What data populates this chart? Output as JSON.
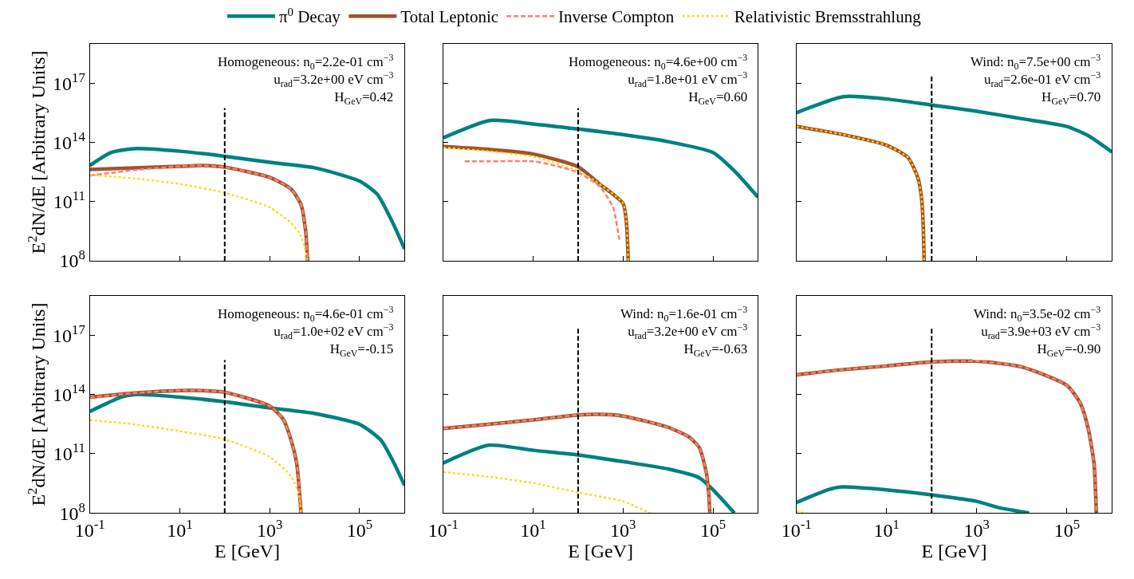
{
  "chart_data": [
    {
      "type": "line",
      "legend": "top",
      "tick_labels": "y",
      "log": "xy",
      "ylabel": "E$^{2}$dN/dE [Arbitrary Units]",
      "xlim": [
        0.1,
        1000000.0
      ],
      "ylim": [
        100000000.0,
        1e+19
      ],
      "xticks": [
        {
          "value": 0.1,
          "label": "10$^{-1}$"
        },
        {
          "value": 10,
          "label": "10$^{1}$"
        },
        {
          "value": 1000,
          "label": "10$^{3}$"
        },
        {
          "value": 100000,
          "label": "10$^{5}$"
        }
      ],
      "yticks": [
        {
          "value": 100000000.0,
          "label": "10$^{8}$"
        },
        {
          "value": 100000000000.0,
          "label": "10$^{11}$"
        },
        {
          "value": 100000000000000.0,
          "label": "10$^{14}$"
        },
        {
          "value": 1e+17,
          "label": "10$^{17}$"
        }
      ],
      "annotations": [
        "Homogeneous: n$_{0}$=2.2e-01 cm$^{−3}$\nu$_{rad}$=3.2e+00 eV cm$^{−3}$\nH$_{GeV}$=0.42"
      ],
      "ref_lines": [
        {
          "axis": "x",
          "value": 100,
          "color": "#000000",
          "line_style": "dashed"
        }
      ],
      "series": [
        {
          "name": "π$^{0}$ Decay",
          "color": "#008080",
          "line_style": "solid",
          "x": [
            0.1,
            0.3,
            1.1,
            10,
            100,
            1000,
            10000,
            100000,
            250000,
            550000,
            1000000
          ],
          "values": [
            6800000000000.0,
            31000000000000.0,
            49000000000000.0,
            36000000000000.0,
            20000000000000.0,
            9800000000000.0,
            5200000000000.0,
            1100000000000.0,
            230000000000.0,
            8300000000.0,
            400000000.0
          ]
        },
        {
          "name": "Total Leptonic",
          "color": "#a0522d",
          "line_style": "solid",
          "x": [
            0.1,
            1,
            10,
            30,
            100,
            1000,
            3000,
            5000,
            6300,
            7000
          ],
          "values": [
            4300000000000.0,
            5200000000000.0,
            6200000000000.0,
            6800000000000.0,
            5600000000000.0,
            1700000000000.0,
            430000000000.0,
            69000000000.0,
            3300000000.0,
            100000000.0
          ]
        },
        {
          "name": "Inverse Compton",
          "color": "#fa8072",
          "line_style": "dashed",
          "x": [
            0.1,
            0.3,
            1,
            10,
            30,
            100,
            1000,
            3000,
            5000,
            6300,
            7000
          ],
          "values": [
            2100000000000.0,
            2900000000000.0,
            4000000000000.0,
            6200000000000.0,
            6800000000000.0,
            5600000000000.0,
            1700000000000.0,
            430000000000.0,
            69000000000.0,
            3300000000.0,
            100000000.0
          ]
        },
        {
          "name": "Relativistic Bremsstrahlung",
          "color": "#ffd700",
          "line_style": "dotted",
          "x": [
            0.1,
            1,
            10,
            100,
            1000,
            3000,
            5000,
            7000
          ],
          "values": [
            2300000000000.0,
            1500000000000.0,
            790000000000.0,
            280000000000.0,
            51000000000.0,
            8300000000.0,
            1800000000.0,
            100000000.0
          ]
        }
      ]
    },
    {
      "type": "line",
      "tick_labels": false,
      "log": "xy",
      "xlim": [
        0.1,
        1000000.0
      ],
      "ylim": [
        100000000.0,
        1e+19
      ],
      "xticks": [
        {
          "value": 0.1,
          "label": "10$^{-1}$"
        },
        {
          "value": 10,
          "label": "10$^{1}$"
        },
        {
          "value": 1000,
          "label": "10$^{3}$"
        },
        {
          "value": 100000,
          "label": "10$^{5}$"
        }
      ],
      "yticks": [
        {
          "value": 100000000.0,
          "label": "10$^{8}$"
        },
        {
          "value": 100000000000.0,
          "label": "10$^{11}$"
        },
        {
          "value": 100000000000000.0,
          "label": "10$^{14}$"
        },
        {
          "value": 1e+17,
          "label": "10$^{17}$"
        }
      ],
      "annotations": [
        "Homogeneous: n$_{0}$=4.6e+00 cm$^{−3}$\nu$_{rad}$=1.8e+01 eV cm$^{−3}$\nH$_{GeV}$=0.60"
      ],
      "ref_lines": [
        {
          "axis": "x",
          "value": 100,
          "color": "#000000",
          "line_style": "dashed"
        }
      ],
      "series": [
        {
          "color": "#008080",
          "line_style": "solid",
          "x": [
            0.1,
            1.1,
            10,
            100,
            1000,
            10000,
            100000,
            300000,
            1000000
          ],
          "values": [
            170000000000000.0,
            1300000000000000.0,
            870000000000000.0,
            480000000000000.0,
            250000000000000.0,
            110000000000000.0,
            31000000000000.0,
            3600000000000.0,
            170000000000.0
          ]
        },
        {
          "color": "#a0522d",
          "line_style": "solid",
          "x": [
            0.1,
            1,
            10,
            100,
            300,
            1000,
            1200,
            1300
          ],
          "values": [
            62000000000000.0,
            45000000000000.0,
            26000000000000.0,
            5800000000000.0,
            790000000000.0,
            81000000000.0,
            6200000000.0,
            100000000.0
          ]
        },
        {
          "color": "#fa8072",
          "line_style": "dashed",
          "x": [
            0.3,
            1,
            10,
            30,
            100,
            300,
            600,
            800,
            850
          ],
          "values": [
            11000000000000.0,
            11000000000000.0,
            11000000000000.0,
            6800000000000.0,
            3000000000000.0,
            590000000000.0,
            51000000000.0,
            1800000000.0,
            950000000.0
          ]
        },
        {
          "color": "#ffd700",
          "line_style": "dotted",
          "x": [
            0.1,
            1,
            10,
            100,
            300,
            1000,
            1200,
            1300
          ],
          "values": [
            56000000000000.0,
            36000000000000.0,
            19000000000000.0,
            3600000000000.0,
            790000000000.0,
            81000000000.0,
            6200000000.0,
            100000000.0
          ]
        }
      ]
    },
    {
      "type": "line",
      "tick_labels": false,
      "log": "xy",
      "xlim": [
        0.1,
        1000000.0
      ],
      "ylim": [
        100000000.0,
        1e+19
      ],
      "xticks": [
        {
          "value": 0.1,
          "label": "10$^{-1}$"
        },
        {
          "value": 10,
          "label": "10$^{1}$"
        },
        {
          "value": 1000,
          "label": "10$^{3}$"
        },
        {
          "value": 100000,
          "label": "10$^{5}$"
        }
      ],
      "yticks": [
        {
          "value": 100000000.0,
          "label": "10$^{8}$"
        },
        {
          "value": 100000000000.0,
          "label": "10$^{11}$"
        },
        {
          "value": 100000000000000.0,
          "label": "10$^{14}$"
        },
        {
          "value": 1e+17,
          "label": "10$^{17}$"
        }
      ],
      "annotations": [
        "Wind: n$_{0}$=7.5e+00 cm$^{−3}$\nu$_{rad}$=2.6e-01 eV cm$^{−3}$\nH$_{GeV}$=0.70"
      ],
      "ref_lines": [
        {
          "axis": "x",
          "value": 100,
          "color": "#000000",
          "line_style": "dashed"
        }
      ],
      "series": [
        {
          "color": "#008080",
          "line_style": "solid",
          "x": [
            0.1,
            1.1,
            10,
            100,
            1000,
            10000,
            100000,
            300000,
            1000000
          ],
          "values": [
            3200000000000000.0,
            2.1e+16,
            1.6e+16,
            7900000000000000.0,
            3800000000000000.0,
            1600000000000000.0,
            650000000000000.0,
            220000000000000.0,
            33000000000000.0
          ]
        },
        {
          "color": "#a0522d",
          "line_style": "solid",
          "x": [
            0.1,
            1,
            10,
            30,
            50,
            60,
            65,
            68
          ],
          "values": [
            650000000000000.0,
            260000000000000.0,
            72000000000000.0,
            17000000000000.0,
            1500000000000.0,
            130000000000.0,
            6200000000.0,
            100000000.0
          ]
        },
        {
          "color": "#ffd700",
          "line_style": "dotted",
          "x": [
            0.1,
            1,
            10,
            30,
            50,
            60,
            65,
            68
          ],
          "values": [
            650000000000000.0,
            260000000000000.0,
            72000000000000.0,
            17000000000000.0,
            1500000000000.0,
            130000000000.0,
            6200000000.0,
            100000000.0
          ]
        }
      ]
    },
    {
      "type": "line",
      "log": "xy",
      "xlabel": "E [GeV]",
      "ylabel": "E$^{2}$dN/dE [Arbitrary Units]",
      "xlim": [
        0.1,
        1000000.0
      ],
      "ylim": [
        100000000.0,
        1e+19
      ],
      "xticks": [
        {
          "value": 0.1,
          "label": "10$^{-1}$"
        },
        {
          "value": 10,
          "label": "10$^{1}$"
        },
        {
          "value": 1000,
          "label": "10$^{3}$"
        },
        {
          "value": 100000,
          "label": "10$^{5}$"
        }
      ],
      "yticks": [
        {
          "value": 100000000.0,
          "label": "10$^{8}$"
        },
        {
          "value": 100000000000.0,
          "label": "10$^{11}$"
        },
        {
          "value": 100000000000000.0,
          "label": "10$^{14}$"
        },
        {
          "value": 1e+17,
          "label": "10$^{17}$"
        }
      ],
      "annotations": [
        "Homogeneous: n$_{0}$=4.6e-01 cm$^{−3}$\nu$_{rad}$=1.0e+02 eV cm$^{−3}$\nH$_{GeV}$=-0.15"
      ],
      "ref_lines": [
        {
          "axis": "x",
          "value": 100,
          "color": "#000000",
          "line_style": "dashed"
        }
      ],
      "series": [
        {
          "color": "#008080",
          "line_style": "solid",
          "x": [
            0.1,
            0.5,
            1,
            10,
            100,
            1000,
            10000,
            100000,
            300000,
            550000,
            1000000
          ],
          "values": [
            14000000000000.0,
            74000000000000.0,
            100000000000000.0,
            74000000000000.0,
            43000000000000.0,
            21000000000000.0,
            11000000000000.0,
            3100000000000.0,
            490000000000.0,
            44000000000.0,
            2500000000.0
          ]
        },
        {
          "color": "#a0522d",
          "line_style": "solid",
          "x": [
            0.1,
            1,
            10,
            30,
            100,
            1000,
            2000,
            3000,
            4000,
            4500,
            5000
          ],
          "values": [
            74000000000000.0,
            120000000000000.0,
            160000000000000.0,
            160000000000000.0,
            130000000000000.0,
            26000000000000.0,
            5600000000000.0,
            490000000000.0,
            32000000000.0,
            2100000000.0,
            100000000.0
          ]
        },
        {
          "color": "#fa8072",
          "line_style": "dashed",
          "x": [
            0.1,
            1,
            10,
            30,
            100,
            1000,
            2000,
            3000,
            4000,
            4500,
            5000
          ],
          "values": [
            70000000000000.0,
            120000000000000.0,
            160000000000000.0,
            160000000000000.0,
            130000000000000.0,
            26000000000000.0,
            5600000000000.0,
            490000000000.0,
            32000000000.0,
            2100000000.0,
            100000000.0
          ]
        },
        {
          "color": "#ffd700",
          "line_style": "dotted",
          "x": [
            0.1,
            1,
            10,
            100,
            1000,
            3000,
            4500,
            5000
          ],
          "values": [
            5100000000000.0,
            3100000000000.0,
            1400000000000.0,
            540000000000.0,
            69000000000.0,
            7100000000.0,
            830000000.0,
            100000000.0
          ]
        }
      ]
    },
    {
      "type": "line",
      "tick_labels": "x",
      "log": "xy",
      "xlabel": "E [GeV]",
      "xlim": [
        0.1,
        1000000.0
      ],
      "ylim": [
        100000000.0,
        1e+19
      ],
      "xticks": [
        {
          "value": 0.1,
          "label": "10$^{-1}$"
        },
        {
          "value": 10,
          "label": "10$^{1}$"
        },
        {
          "value": 1000,
          "label": "10$^{3}$"
        },
        {
          "value": 100000,
          "label": "10$^{5}$"
        }
      ],
      "yticks": [
        {
          "value": 100000000.0,
          "label": "10$^{8}$"
        },
        {
          "value": 100000000000.0,
          "label": "10$^{11}$"
        },
        {
          "value": 100000000000000.0,
          "label": "10$^{14}$"
        },
        {
          "value": 1e+17,
          "label": "10$^{17}$"
        }
      ],
      "annotations": [
        "Wind: n$_{0}$=1.6e-01 cm$^{−3}$\nu$_{rad}$=3.2e+00 eV cm$^{−3}$\nH$_{GeV}$=-0.63"
      ],
      "ref_lines": [
        {
          "axis": "x",
          "value": 100,
          "color": "#000000",
          "line_style": "dashed"
        }
      ],
      "series": [
        {
          "color": "#008080",
          "line_style": "solid",
          "x": [
            0.1,
            1,
            10,
            100,
            1000,
            10000,
            50000,
            100000,
            300000
          ],
          "values": [
            34000000000.0,
            270000000000.0,
            150000000000.0,
            87000000000.0,
            40000000000.0,
            17000000000.0,
            6000000000.0,
            1500000000.0,
            100000000.0
          ]
        },
        {
          "color": "#a0522d",
          "line_style": "solid",
          "x": [
            0.1,
            1,
            10,
            100,
            300,
            1000,
            10000,
            30000,
            50000,
            70000,
            80000,
            85000
          ],
          "values": [
            1900000000000.0,
            3100000000000.0,
            5200000000000.0,
            9300000000000.0,
            10000000000000.0,
            8100000000000.0,
            2200000000000.0,
            680000000000.0,
            200000000000.0,
            13000000000.0,
            1100000000.0,
            100000000.0
          ]
        },
        {
          "color": "#fa8072",
          "line_style": "dashed",
          "x": [
            0.1,
            1,
            10,
            100,
            300,
            1000,
            10000,
            30000,
            50000,
            70000,
            80000,
            85000
          ],
          "values": [
            1900000000000.0,
            3100000000000.0,
            5200000000000.0,
            9300000000000.0,
            10000000000000.0,
            8100000000000.0,
            2200000000000.0,
            680000000000.0,
            200000000000.0,
            13000000000.0,
            1100000000.0,
            100000000.0
          ]
        },
        {
          "color": "#ffd700",
          "line_style": "dotted",
          "x": [
            0.1,
            1,
            10,
            100,
            1000,
            4000
          ],
          "values": [
            12000000000.0,
            6900000000.0,
            3300000000.0,
            1100000000.0,
            390000000.0,
            100000000.0
          ]
        }
      ]
    },
    {
      "type": "line",
      "tick_labels": "x",
      "log": "xy",
      "xlabel": "E [GeV]",
      "xlim": [
        0.1,
        1000000.0
      ],
      "ylim": [
        100000000.0,
        1e+19
      ],
      "xticks": [
        {
          "value": 0.1,
          "label": "10$^{-1}$"
        },
        {
          "value": 10,
          "label": "10$^{1}$"
        },
        {
          "value": 1000,
          "label": "10$^{3}$"
        },
        {
          "value": 100000,
          "label": "10$^{5}$"
        }
      ],
      "yticks": [
        {
          "value": 100000000.0,
          "label": "10$^{8}$"
        },
        {
          "value": 100000000000.0,
          "label": "10$^{11}$"
        },
        {
          "value": 100000000000000.0,
          "label": "10$^{14}$"
        },
        {
          "value": 1e+17,
          "label": "10$^{17}$"
        }
      ],
      "annotations": [
        "Wind: n$_{0}$=3.5e-02 cm$^{−3}$\nu$_{rad}$=3.9e+03 eV cm$^{−3}$\nH$_{GeV}$=-0.90"
      ],
      "ref_lines": [
        {
          "axis": "x",
          "value": 100,
          "color": "#000000",
          "line_style": "dashed"
        }
      ],
      "series": [
        {
          "color": "#008080",
          "line_style": "solid",
          "x": [
            0.1,
            0.5,
            1,
            10,
            100,
            1000,
            3000,
            14500
          ],
          "values": [
            340000000.0,
            1500000000.0,
            2100000000.0,
            1500000000.0,
            830000000.0,
            390000000.0,
            190000000.0,
            100000000.0
          ]
        },
        {
          "color": "#a0522d",
          "line_style": "solid",
          "x": [
            0.1,
            1,
            10,
            100,
            1000,
            10000,
            100000,
            200000,
            300000,
            400000,
            450000
          ],
          "values": [
            1000000000000000.0,
            1800000000000000.0,
            2800000000000000.0,
            4500000000000000.0,
            4900000000000000.0,
            2500000000000000.0,
            290000000000000.0,
            35000000000000.0,
            1700000000000.0,
            32000000000.0,
            100000000.0
          ]
        },
        {
          "color": "#fa8072",
          "line_style": "dashed",
          "x": [
            0.1,
            1,
            10,
            100,
            1000,
            10000,
            100000,
            200000,
            300000,
            400000,
            450000
          ],
          "values": [
            1000000000000000.0,
            1800000000000000.0,
            2800000000000000.0,
            4500000000000000.0,
            4900000000000000.0,
            2500000000000000.0,
            290000000000000.0,
            35000000000000.0,
            1700000000000.0,
            32000000000.0,
            100000000.0
          ]
        },
        {
          "color": "#ffd700",
          "line_style": "dotted",
          "x": [
            0.1,
            0.17
          ],
          "values": [
            120000000.0,
            100000000.0
          ]
        }
      ]
    }
  ]
}
